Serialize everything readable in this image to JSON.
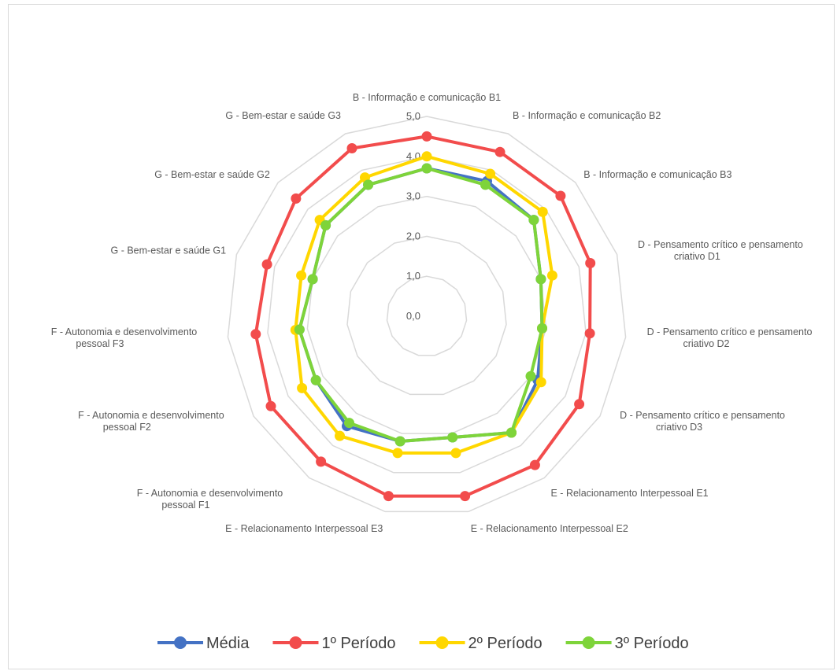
{
  "chart_data": {
    "type": "radar",
    "title": "",
    "categories": [
      "B - Informação e comunicação B1",
      "B - Informação e comunicação B2",
      "B - Informação e comunicação B3",
      "D - Pensamento crítico e pensamento criativo D1",
      "D - Pensamento crítico e pensamento criativo D2",
      "D - Pensamento crítico e pensamento criativo D3",
      "E - Relacionamento Interpessoal E1",
      "E - Relacionamento Interpessoal E2",
      "E - Relacionamento Interpessoal E3",
      "F - Autonomia e desenvolvimento pessoal F1",
      "F - Autonomia e desenvolvimento pessoal F2",
      "F - Autonomia e desenvolvimento pessoal F3",
      "G - Bem-estar e saúde G1",
      "G - Bem-estar e saúde G2",
      "G - Bem-estar e saúde G3"
    ],
    "category_label_lines": [
      [
        "B - Informação e comunicação B1"
      ],
      [
        "B - Informação e comunicação B2"
      ],
      [
        "B - Informação e comunicação B3"
      ],
      [
        "D - Pensamento crítico e pensamento",
        "criativo D1"
      ],
      [
        "D - Pensamento crítico e pensamento",
        "criativo D2"
      ],
      [
        "D - Pensamento crítico e pensamento",
        "criativo D3"
      ],
      [
        "E - Relacionamento Interpessoal E1"
      ],
      [
        "E - Relacionamento Interpessoal E2"
      ],
      [
        "E - Relacionamento Interpessoal E3"
      ],
      [
        "F - Autonomia e desenvolvimento",
        "pessoal F1"
      ],
      [
        "F - Autonomia e desenvolvimento",
        "pessoal F2"
      ],
      [
        "F - Autonomia e desenvolvimento",
        "pessoal F3"
      ],
      [
        "G - Bem-estar e saúde G1"
      ],
      [
        "G - Bem-estar e saúde G2"
      ],
      [
        "G - Bem-estar e saúde G3"
      ]
    ],
    "rlim": [
      0,
      5
    ],
    "ticks": [
      "0,0",
      "1,0",
      "2,0",
      "3,0",
      "4,0",
      "5,0"
    ],
    "grid": true,
    "legend_position": "bottom",
    "series": [
      {
        "name": "Média",
        "color": "#4472c4",
        "values": [
          3.7,
          3.7,
          3.6,
          3.0,
          2.9,
          3.2,
          3.6,
          3.1,
          3.2,
          3.4,
          3.2,
          3.2,
          3.0,
          3.4,
          3.6
        ]
      },
      {
        "name": "1º Período",
        "color": "#f24c4c",
        "values": [
          4.5,
          4.5,
          4.5,
          4.3,
          4.1,
          4.4,
          4.6,
          4.6,
          4.6,
          4.5,
          4.5,
          4.3,
          4.2,
          4.4,
          4.6
        ]
      },
      {
        "name": "2º Período",
        "color": "#ffd700",
        "values": [
          4.0,
          3.9,
          3.9,
          3.3,
          2.9,
          3.3,
          3.6,
          3.5,
          3.5,
          3.7,
          3.6,
          3.3,
          3.3,
          3.6,
          3.8
        ]
      },
      {
        "name": "3º Período",
        "color": "#7ed43a",
        "values": [
          3.7,
          3.6,
          3.6,
          3.0,
          2.9,
          3.0,
          3.6,
          3.1,
          3.2,
          3.3,
          3.2,
          3.2,
          3.0,
          3.4,
          3.6
        ]
      }
    ]
  }
}
